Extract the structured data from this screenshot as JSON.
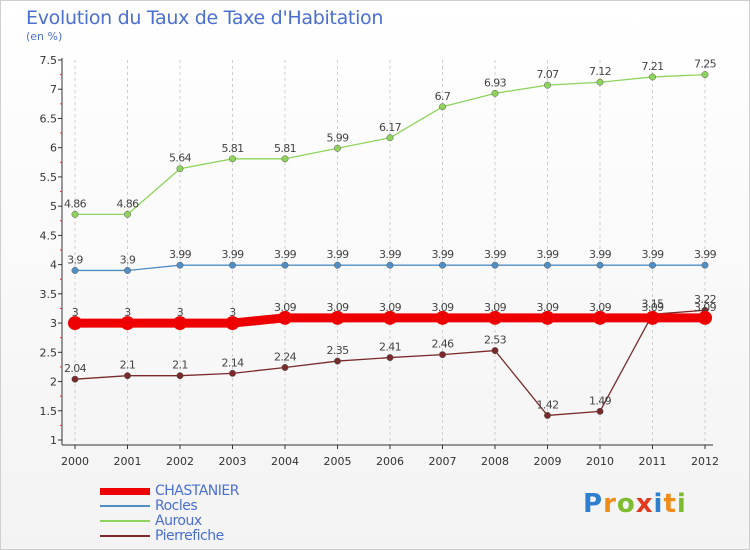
{
  "title": "Evolution du Taux de Taxe d'Habitation",
  "subtitle": "(en %)",
  "logo": {
    "text": "Proxiti",
    "letters": [
      {
        "ch": "P",
        "color": "#2f7fd0"
      },
      {
        "ch": "r",
        "color": "#f08c1a"
      },
      {
        "ch": "o",
        "color": "#7dbb2f"
      },
      {
        "ch": "x",
        "color": "#e2391f"
      },
      {
        "ch": "i",
        "color": "#2f7fd0"
      },
      {
        "ch": "t",
        "color": "#f08c1a"
      },
      {
        "ch": "i",
        "color": "#7dbb2f"
      }
    ]
  },
  "chart_data": {
    "type": "line",
    "title": "Evolution du Taux de Taxe d'Habitation",
    "subtitle": "(en %)",
    "xlabel": "",
    "ylabel": "",
    "x": [
      "2000",
      "2001",
      "2002",
      "2003",
      "2004",
      "2005",
      "2006",
      "2007",
      "2008",
      "2009",
      "2010",
      "2011",
      "2012"
    ],
    "ylim": [
      1,
      7.5
    ],
    "yticks": [
      1,
      1.5,
      2,
      2.5,
      3,
      3.5,
      4,
      4.5,
      5,
      5.5,
      6,
      6.5,
      7,
      7.5
    ],
    "grid": "vertical dashed",
    "legend_position": "bottom-left",
    "series": [
      {
        "name": "CHASTANIER",
        "color": "#ee0000",
        "bold": true,
        "values": [
          3,
          3,
          3,
          3,
          3.09,
          3.09,
          3.09,
          3.09,
          3.09,
          3.09,
          3.09,
          3.09,
          3.09
        ],
        "labels": [
          "3",
          "3",
          "3",
          "3",
          "3.09",
          "3.09",
          "3.09",
          "3.09",
          "3.09",
          "3.09",
          "3.09",
          "3.09",
          "3.09"
        ]
      },
      {
        "name": "Rocles",
        "color": "#4f8fc6",
        "values": [
          3.9,
          3.9,
          3.99,
          3.99,
          3.99,
          3.99,
          3.99,
          3.99,
          3.99,
          3.99,
          3.99,
          3.99,
          3.99
        ],
        "labels": [
          "3.9",
          "3.9",
          "3.99",
          "3.99",
          "3.99",
          "3.99",
          "3.99",
          "3.99",
          "3.99",
          "3.99",
          "3.99",
          "3.99",
          "3.99"
        ]
      },
      {
        "name": "Auroux",
        "color": "#8ed45c",
        "values": [
          4.86,
          4.86,
          5.64,
          5.81,
          5.81,
          5.99,
          6.17,
          6.7,
          6.93,
          7.07,
          7.12,
          7.21,
          7.25
        ],
        "labels": [
          "4.86",
          "4.86",
          "5.64",
          "5.81",
          "5.81",
          "5.99",
          "6.17",
          "6.7",
          "6.93",
          "7.07",
          "7.12",
          "7.21",
          "7.25"
        ]
      },
      {
        "name": "Pierrefiche",
        "color": "#7a2a2a",
        "values": [
          2.04,
          2.1,
          2.1,
          2.14,
          2.24,
          2.35,
          2.41,
          2.46,
          2.53,
          1.42,
          1.49,
          3.15,
          3.22
        ],
        "labels": [
          "2.04",
          "2.1",
          "2.1",
          "2.14",
          "2.24",
          "2.35",
          "2.41",
          "2.46",
          "2.53",
          "1.42",
          "1.49",
          "3.15",
          "3.22"
        ]
      }
    ]
  }
}
